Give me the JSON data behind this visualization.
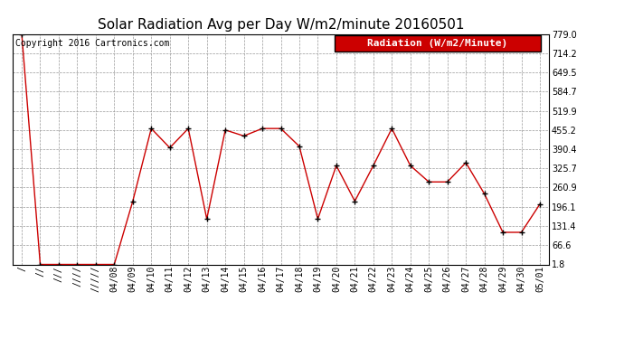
{
  "title": "Solar Radiation Avg per Day W/m2/minute 20160501",
  "copyright": "Copyright 2016 Cartronics.com",
  "legend_label": "Radiation (W/m2/Minute)",
  "dates": [
    "/",
    "//",
    "///",
    "////",
    "/////",
    "04/08",
    "04/09",
    "04/10",
    "04/11",
    "04/12",
    "04/13",
    "04/14",
    "04/15",
    "04/16",
    "04/17",
    "04/18",
    "04/19",
    "04/20",
    "04/21",
    "04/22",
    "04/23",
    "04/24",
    "04/25",
    "04/26",
    "04/27",
    "04/28",
    "04/29",
    "04/30",
    "05/01"
  ],
  "values": [
    779.0,
    1.8,
    1.8,
    1.8,
    1.8,
    1.8,
    215.0,
    460.0,
    395.0,
    460.0,
    155.0,
    455.0,
    435.0,
    460.0,
    460.0,
    400.0,
    155.0,
    335.0,
    215.0,
    335.0,
    460.0,
    335.0,
    280.0,
    280.0,
    345.0,
    240.0,
    110.0,
    110.0,
    205.0
  ],
  "ylim": [
    1.8,
    779.0
  ],
  "yticks": [
    1.8,
    66.6,
    131.4,
    196.1,
    260.9,
    325.7,
    390.4,
    455.2,
    519.9,
    584.7,
    649.5,
    714.2,
    779.0
  ],
  "line_color": "#cc0000",
  "marker_color": "black",
  "bg_color": "#ffffff",
  "grid_color": "#999999",
  "legend_bg": "#cc0000",
  "legend_text_color": "#ffffff",
  "title_fontsize": 11,
  "copyright_fontsize": 7,
  "tick_fontsize": 7,
  "legend_fontsize": 8
}
